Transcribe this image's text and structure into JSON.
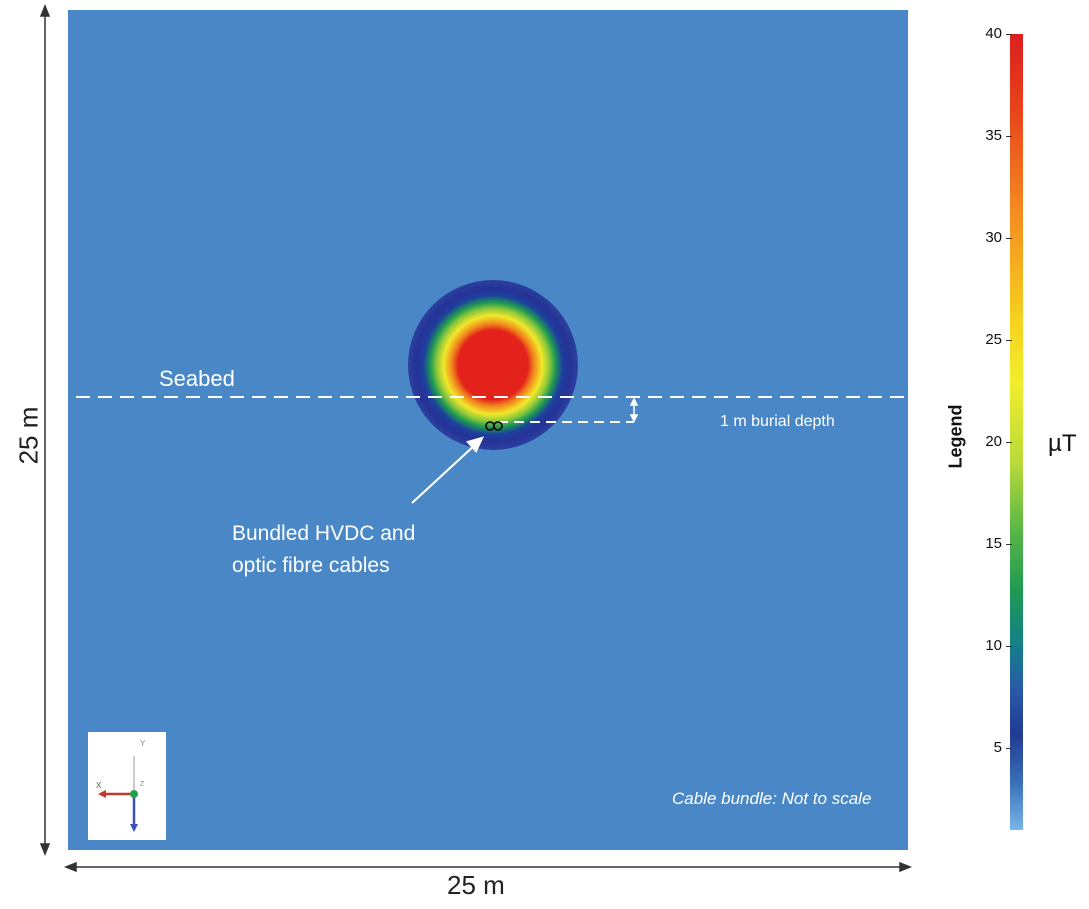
{
  "annotations": {
    "seabed": "Seabed",
    "burial_depth": "1 m burial depth",
    "cable_label": "Bundled HVDC and\noptic fibre cables",
    "scale_note": "Cable bundle: Not to scale"
  },
  "dimensions": {
    "width": "25 m",
    "height": "25 m"
  },
  "colorbar": {
    "title": "Legend",
    "unit": "µT",
    "min": 1,
    "max": 40,
    "ticks": [
      "40",
      "35",
      "30",
      "25",
      "20",
      "15",
      "10",
      "5"
    ]
  },
  "axes_widget": {
    "y": "Y",
    "x": "X",
    "z": "Z"
  },
  "colors": {
    "background_field": "#4a87c7",
    "field_max": "#e3221c",
    "annotation_text": "#ffffff"
  }
}
